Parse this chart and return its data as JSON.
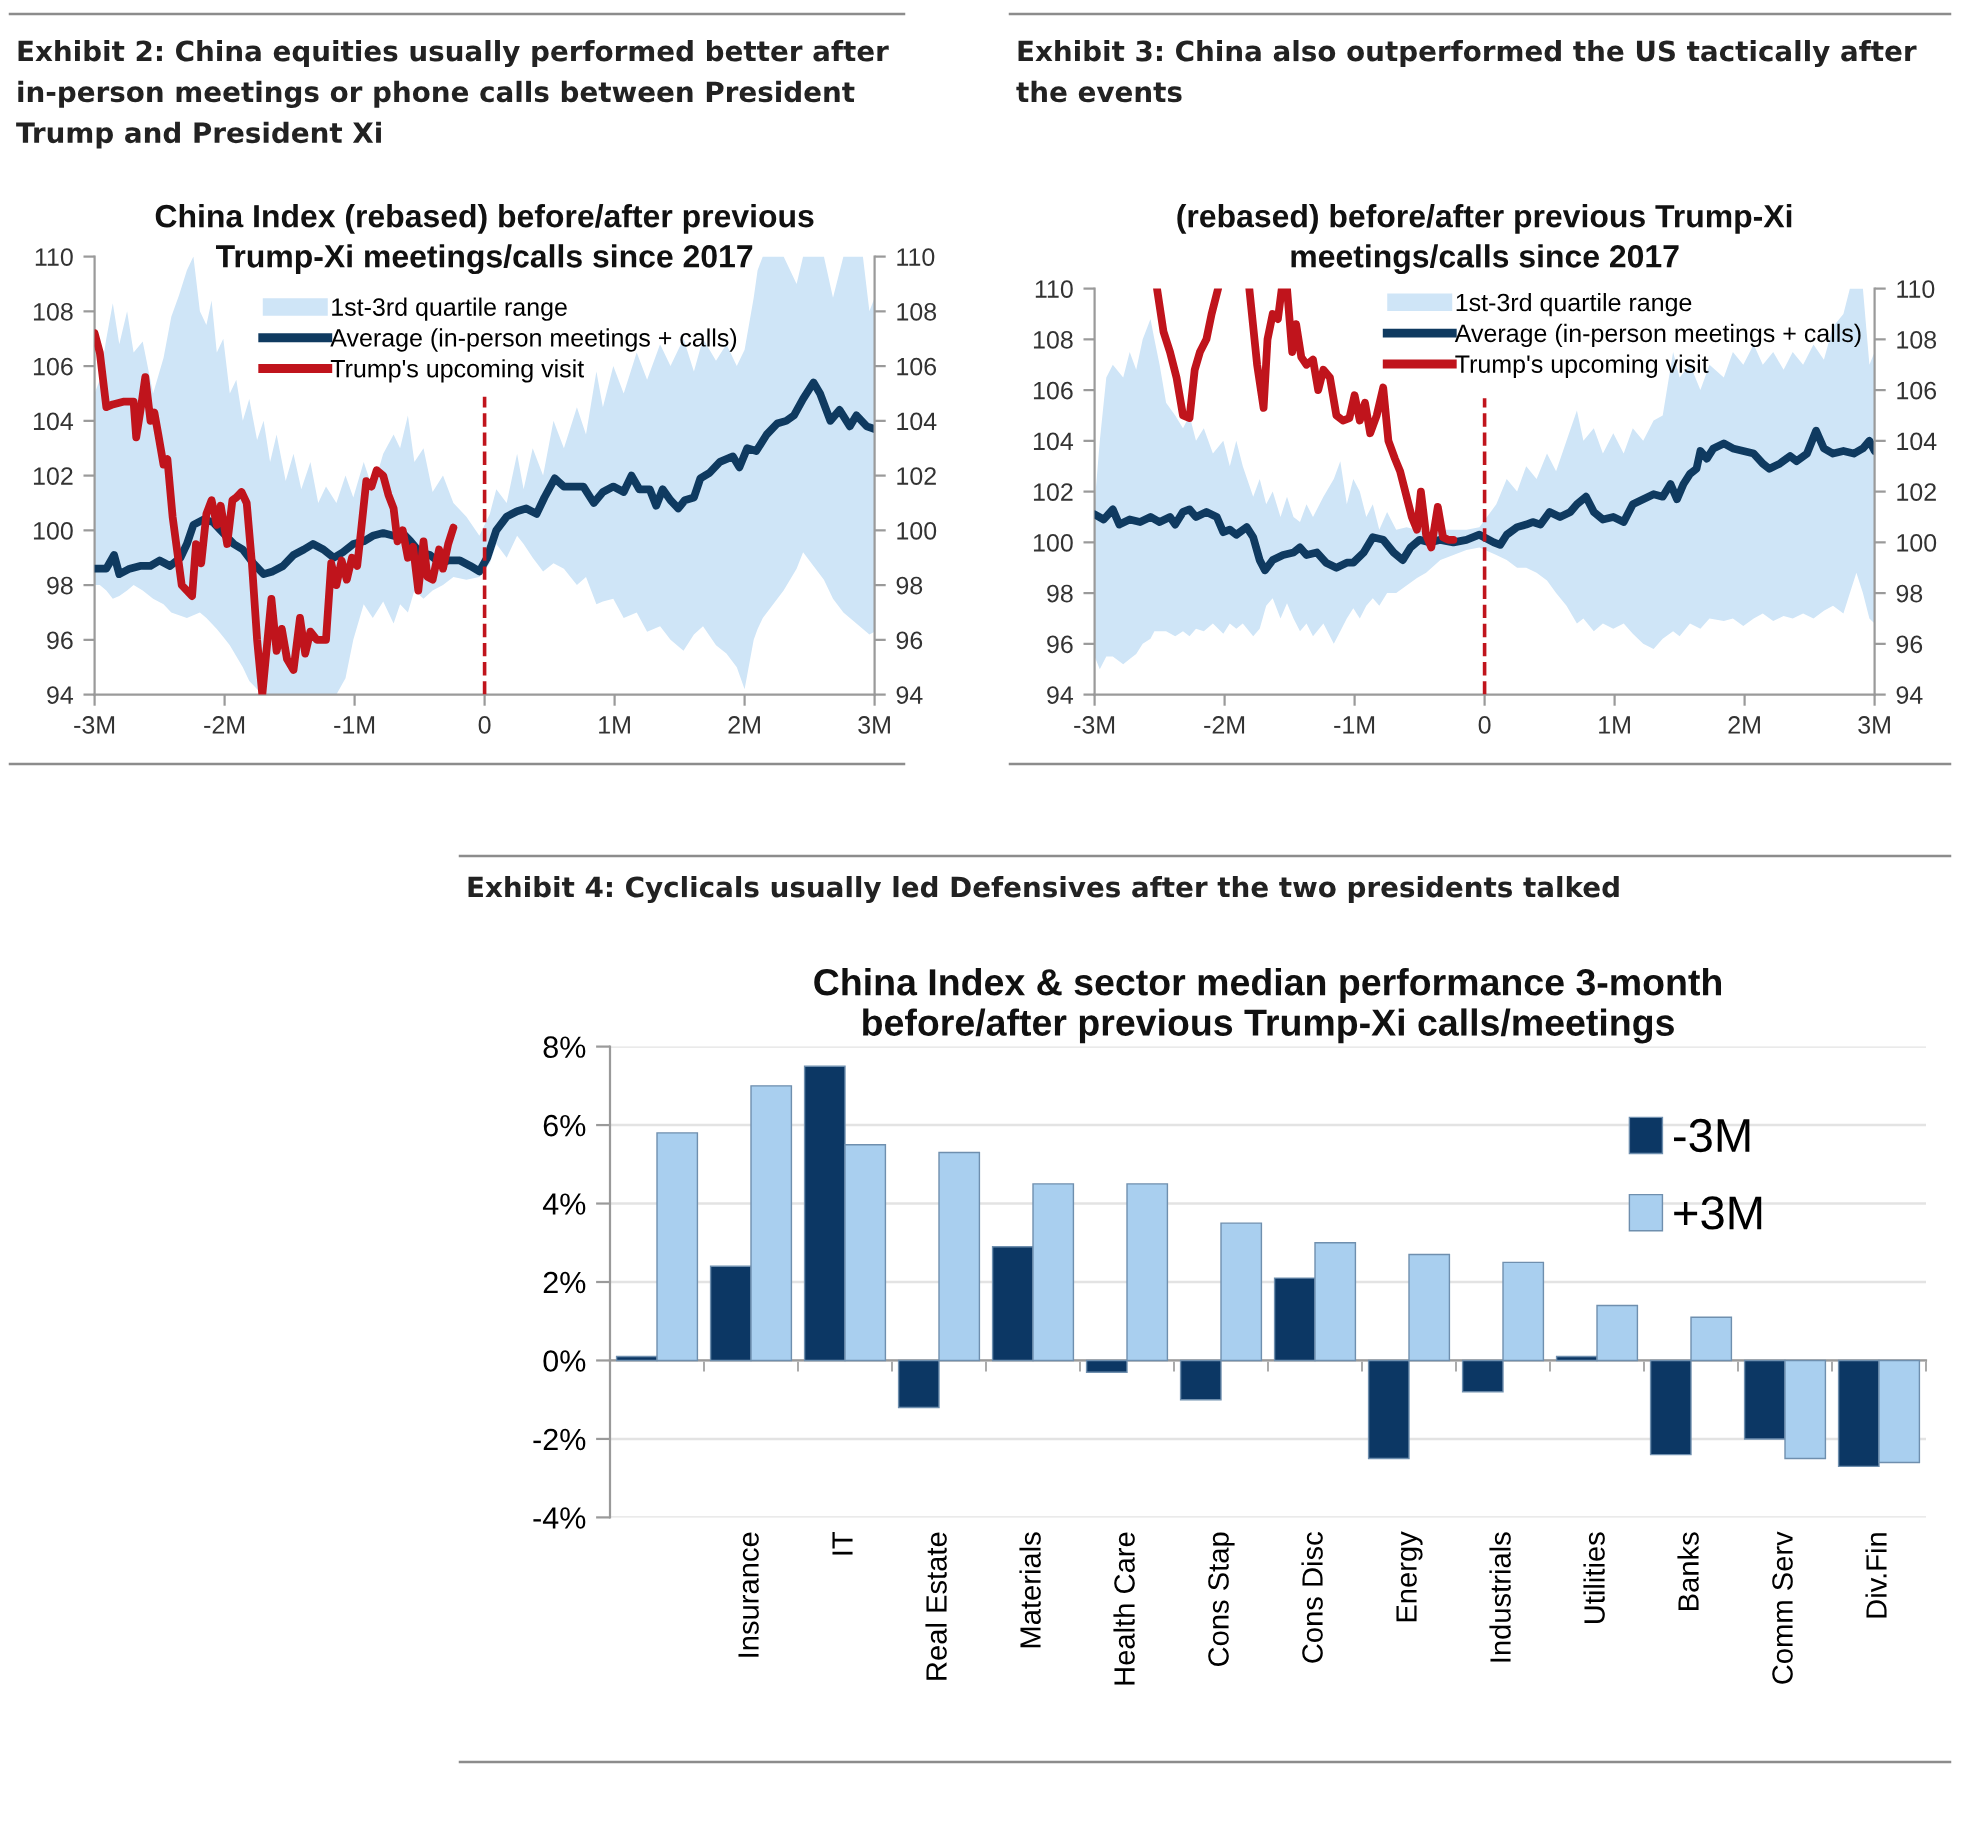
{
  "chart_data": [
    {
      "type": "line",
      "title": "Exhibit 2: China equities usually performed better after in-person meetings or phone calls between President Trump and President Xi",
      "subtitle": "China Index (rebased) before/after previous Trump-Xi meetings/calls since 2017",
      "xlim": [
        -3,
        3
      ],
      "xticks": [
        {
          "value": -3,
          "label": "-3M"
        },
        {
          "value": -2,
          "label": "-2M"
        },
        {
          "value": -1,
          "label": "-1M"
        },
        0,
        {
          "value": 1,
          "label": "1M"
        },
        {
          "value": 2,
          "label": "2M"
        },
        {
          "value": 3,
          "label": "3M"
        }
      ],
      "ylim": [
        94,
        110
      ],
      "yticks": [
        94,
        96,
        98,
        100,
        102,
        104,
        106,
        108,
        110
      ],
      "y2lim": [
        94,
        110
      ],
      "y2ticks": [
        94,
        96,
        98,
        100,
        102,
        104,
        106,
        108,
        110
      ],
      "legend": "top",
      "ref_lines": [
        {
          "axis": "x",
          "value": 0,
          "color": "#c0141c",
          "line_style": "dashed"
        }
      ],
      "series": [
        {
          "name": "1st-3rd quartile range",
          "type": "area",
          "color": "#cfe5f7",
          "x": [
            -3.0,
            -2.96,
            -2.91,
            -2.86,
            -2.81,
            -2.75,
            -2.7,
            -2.63,
            -2.55,
            -2.47,
            -2.41,
            -2.35,
            -2.29,
            -2.24,
            -2.19,
            -2.14,
            -2.1,
            -2.06,
            -2.01,
            -1.96,
            -1.91,
            -1.86,
            -1.81,
            -1.75,
            -1.7,
            -1.65,
            -1.6,
            -1.53,
            -1.47,
            -1.41,
            -1.34,
            -1.28,
            -1.22,
            -1.14,
            -1.07,
            -1.01,
            -0.93,
            -0.86,
            -0.78,
            -0.7,
            -0.65,
            -0.59,
            -0.54,
            -0.47,
            -0.4,
            -0.32,
            -0.24,
            -0.14,
            -0.04,
            0.04,
            0.09,
            0.17,
            0.25,
            0.3,
            0.37,
            0.45,
            0.53,
            0.61,
            0.71,
            0.78,
            0.86,
            0.91,
            0.99,
            1.07,
            1.17,
            1.25,
            1.35,
            1.43,
            1.53,
            1.61,
            1.68,
            1.78,
            1.86,
            1.94,
            2.0,
            2.07,
            2.1,
            2.14,
            2.3,
            2.4,
            2.45,
            2.61,
            2.68,
            2.76,
            2.91,
            2.96,
            3.0
          ],
          "values": [
            null,
            null,
            null,
            null,
            null,
            null,
            null,
            null,
            null,
            null,
            null,
            null,
            null,
            null,
            null,
            null,
            null,
            null,
            null,
            null,
            null,
            null,
            null,
            null,
            null,
            null,
            null,
            null,
            null,
            null,
            null,
            null,
            null,
            null,
            null,
            null,
            null,
            null,
            null,
            null,
            null,
            null,
            null,
            null,
            null,
            null,
            null,
            null,
            null,
            null,
            null,
            null,
            null,
            null,
            null,
            null,
            null,
            null,
            null,
            null,
            null,
            null,
            null,
            null,
            null,
            null,
            null,
            null,
            null,
            null,
            null,
            null,
            null,
            null,
            null,
            null,
            null,
            null,
            null,
            null,
            null,
            null,
            null,
            null,
            null,
            null,
            null
          ],
          "upper": [
            105.0,
            105.5,
            107.0,
            108.3,
            106.8,
            108.0,
            106.5,
            106.9,
            105.0,
            106.3,
            107.8,
            108.6,
            109.5,
            110.0,
            108.0,
            107.5,
            108.4,
            106.5,
            107.0,
            105.0,
            105.5,
            104.0,
            104.8,
            103.3,
            104.0,
            102.5,
            103.5,
            101.8,
            102.8,
            101.5,
            102.5,
            101.0,
            101.6,
            101.0,
            102.0,
            101.2,
            102.5,
            101.5,
            102.8,
            103.5,
            103.0,
            104.2,
            102.5,
            103.0,
            101.4,
            102.0,
            101.0,
            100.5,
            99.8,
            100.6,
            101.5,
            101.0,
            102.8,
            101.5,
            103.0,
            102.0,
            104.0,
            103.0,
            104.5,
            103.5,
            105.8,
            104.5,
            106.0,
            105.0,
            106.5,
            105.5,
            106.8,
            106.0,
            107.0,
            105.8,
            107.0,
            106.2,
            106.8,
            106.0,
            106.6,
            108.5,
            109.5,
            110.0,
            110.0,
            109.0,
            110.0,
            110.0,
            108.5,
            110.0,
            110.0,
            108.0,
            108.5
          ],
          "lower": [
            98.0,
            98.0,
            97.8,
            97.5,
            97.6,
            97.8,
            98.0,
            97.8,
            97.5,
            97.3,
            97.0,
            96.9,
            96.8,
            96.9,
            97.0,
            96.8,
            96.6,
            96.4,
            96.1,
            95.8,
            95.4,
            95.0,
            94.5,
            94.2,
            94.0,
            94.0,
            94.0,
            94.0,
            94.0,
            94.0,
            94.0,
            94.0,
            94.0,
            94.0,
            94.6,
            96.0,
            97.3,
            96.8,
            97.4,
            96.6,
            97.3,
            97.0,
            97.8,
            97.5,
            97.8,
            98.0,
            98.3,
            98.2,
            98.3,
            98.8,
            99.5,
            99.0,
            99.8,
            99.5,
            99.0,
            98.5,
            98.8,
            98.6,
            98.0,
            98.3,
            97.3,
            97.4,
            97.5,
            96.8,
            97.0,
            96.3,
            96.5,
            96.0,
            95.6,
            96.2,
            96.5,
            95.8,
            95.5,
            95.0,
            94.2,
            96.0,
            96.4,
            96.8,
            97.8,
            98.6,
            99.2,
            98.2,
            97.5,
            97.0,
            96.4,
            96.2,
            96.3
          ]
        },
        {
          "name": "Average (in-person meetings + calls)",
          "type": "line",
          "color": "#0f3a60",
          "x": [
            -3.0,
            -2.91,
            -2.85,
            -2.81,
            -2.73,
            -2.65,
            -2.57,
            -2.5,
            -2.42,
            -2.34,
            -2.29,
            -2.24,
            -2.16,
            -2.09,
            -2.01,
            -1.93,
            -1.86,
            -1.78,
            -1.7,
            -1.63,
            -1.55,
            -1.47,
            -1.39,
            -1.32,
            -1.24,
            -1.16,
            -1.09,
            -1.01,
            -0.93,
            -0.86,
            -0.78,
            -0.7,
            -0.63,
            -0.57,
            -0.5,
            -0.42,
            -0.34,
            -0.28,
            -0.19,
            -0.11,
            -0.04,
            0.02,
            0.09,
            0.17,
            0.25,
            0.32,
            0.4,
            0.46,
            0.54,
            0.61,
            0.68,
            0.76,
            0.84,
            0.91,
            0.99,
            1.07,
            1.13,
            1.19,
            1.27,
            1.32,
            1.37,
            1.43,
            1.49,
            1.54,
            1.61,
            1.66,
            1.73,
            1.81,
            1.91,
            1.96,
            2.02,
            2.09,
            2.17,
            2.25,
            2.32,
            2.38,
            2.45,
            2.53,
            2.58,
            2.66,
            2.73,
            2.81,
            2.86,
            2.94,
            3.0
          ],
          "values": [
            98.6,
            98.6,
            99.1,
            98.4,
            98.6,
            98.7,
            98.7,
            98.9,
            98.7,
            99.0,
            99.5,
            100.2,
            100.4,
            100.3,
            99.9,
            99.5,
            99.3,
            98.8,
            98.4,
            98.5,
            98.7,
            99.1,
            99.3,
            99.5,
            99.3,
            99.0,
            99.2,
            99.5,
            99.6,
            99.8,
            99.9,
            99.8,
            99.9,
            99.6,
            99.2,
            99.1,
            98.8,
            98.9,
            98.9,
            98.7,
            98.5,
            99.0,
            100.0,
            100.5,
            100.7,
            100.8,
            100.6,
            101.2,
            101.9,
            101.6,
            101.6,
            101.6,
            101.0,
            101.4,
            101.6,
            101.4,
            102.0,
            101.5,
            101.5,
            100.9,
            101.5,
            101.1,
            100.8,
            101.1,
            101.2,
            101.9,
            102.1,
            102.5,
            102.7,
            102.3,
            103.0,
            102.9,
            103.5,
            103.9,
            104.0,
            104.2,
            104.8,
            105.4,
            105.0,
            104.0,
            104.4,
            103.8,
            104.2,
            103.8,
            103.7
          ]
        },
        {
          "name": "Trump's upcoming visit",
          "type": "line",
          "color": "#c0141c",
          "x": [
            -3.0,
            -2.96,
            -2.91,
            -2.86,
            -2.78,
            -2.7,
            -2.68,
            -2.64,
            -2.61,
            -2.57,
            -2.54,
            -2.51,
            -2.47,
            -2.44,
            -2.4,
            -2.33,
            -2.29,
            -2.25,
            -2.22,
            -2.18,
            -2.14,
            -2.1,
            -2.06,
            -2.03,
            -1.98,
            -1.94,
            -1.91,
            -1.87,
            -1.83,
            -1.79,
            -1.75,
            -1.71,
            -1.68,
            -1.64,
            -1.6,
            -1.56,
            -1.52,
            -1.47,
            -1.42,
            -1.38,
            -1.34,
            -1.29,
            -1.22,
            -1.18,
            -1.14,
            -1.1,
            -1.06,
            -1.02,
            -0.98,
            -0.95,
            -0.91,
            -0.87,
            -0.83,
            -0.78,
            -0.74,
            -0.7,
            -0.67,
            -0.63,
            -0.59,
            -0.55,
            -0.51,
            -0.47,
            -0.44,
            -0.4,
            -0.35,
            -0.32,
            -0.28,
            -0.24
          ],
          "values": [
            107.2,
            106.5,
            104.5,
            104.6,
            104.7,
            104.7,
            103.4,
            104.6,
            105.6,
            104.0,
            104.3,
            103.5,
            102.4,
            102.6,
            100.5,
            98.0,
            97.8,
            97.6,
            99.5,
            98.8,
            100.6,
            101.1,
            100.2,
            100.9,
            99.5,
            101.1,
            101.2,
            101.4,
            101.0,
            98.8,
            96.0,
            94.0,
            95.5,
            97.5,
            95.6,
            96.4,
            95.3,
            94.9,
            96.8,
            95.5,
            96.3,
            96.0,
            96.0,
            98.8,
            98.0,
            98.9,
            98.2,
            99.0,
            98.7,
            100.0,
            101.8,
            101.6,
            102.2,
            102.0,
            101.3,
            100.8,
            99.6,
            100.0,
            99.0,
            99.4,
            97.8,
            99.6,
            98.3,
            98.2,
            99.3,
            98.6,
            99.5,
            100.1
          ]
        }
      ]
    },
    {
      "type": "line",
      "title": "Exhibit 3: China also outperformed the US tactically after the events",
      "subtitle": "(rebased) before/after previous Trump-Xi meetings/calls since 2017",
      "xlim": [
        -3,
        3
      ],
      "xticks": [
        {
          "value": -3,
          "label": "-3M"
        },
        {
          "value": -2,
          "label": "-2M"
        },
        {
          "value": -1,
          "label": "-1M"
        },
        0,
        {
          "value": 1,
          "label": "1M"
        },
        {
          "value": 2,
          "label": "2M"
        },
        {
          "value": 3,
          "label": "3M"
        }
      ],
      "ylim": [
        94,
        110
      ],
      "yticks": [
        94,
        96,
        98,
        100,
        102,
        104,
        106,
        108,
        110
      ],
      "y2lim": [
        94,
        110
      ],
      "y2ticks": [
        94,
        96,
        98,
        100,
        102,
        104,
        106,
        108,
        110
      ],
      "legend": "top right",
      "ref_lines": [
        {
          "axis": "x",
          "value": 0,
          "color": "#c0141c",
          "line_style": "dashed"
        }
      ],
      "series": [
        {
          "name": "1st-3rd quartile range",
          "type": "area",
          "color": "#cfe5f7",
          "x": [
            -3.0,
            -2.96,
            -2.91,
            -2.86,
            -2.78,
            -2.73,
            -2.68,
            -2.63,
            -2.57,
            -2.54,
            -2.5,
            -2.45,
            -2.38,
            -2.32,
            -2.27,
            -2.22,
            -2.16,
            -2.09,
            -2.01,
            -1.96,
            -1.91,
            -1.86,
            -1.78,
            -1.73,
            -1.68,
            -1.63,
            -1.57,
            -1.52,
            -1.47,
            -1.42,
            -1.37,
            -1.32,
            -1.24,
            -1.16,
            -1.11,
            -1.06,
            -1.01,
            -0.96,
            -0.91,
            -0.86,
            -0.81,
            -0.75,
            -0.68,
            -0.6,
            -0.52,
            -0.45,
            -0.34,
            -0.24,
            -0.14,
            -0.04,
            0.09,
            0.17,
            0.25,
            0.32,
            0.4,
            0.48,
            0.55,
            0.63,
            0.71,
            0.76,
            0.84,
            0.91,
            0.99,
            1.07,
            1.14,
            1.22,
            1.3,
            1.37,
            1.45,
            1.5,
            1.58,
            1.66,
            1.73,
            1.84,
            1.91,
            1.99,
            2.07,
            2.14,
            2.22,
            2.3,
            2.37,
            2.45,
            2.53,
            2.61,
            2.68,
            2.76,
            2.81,
            2.86,
            2.91,
            2.96,
            3.0
          ],
          "values": [
            null,
            null,
            null,
            null,
            null,
            null,
            null,
            null,
            null,
            null,
            null,
            null,
            null,
            null,
            null,
            null,
            null,
            null,
            null,
            null,
            null,
            null,
            null,
            null,
            null,
            null,
            null,
            null,
            null,
            null,
            null,
            null,
            null,
            null,
            null,
            null,
            null,
            null,
            null,
            null,
            null,
            null,
            null,
            null,
            null,
            null,
            null,
            null,
            null,
            null,
            null,
            null,
            null,
            null,
            null,
            null,
            null,
            null,
            null,
            null,
            null,
            null,
            null,
            null,
            null,
            null,
            null,
            null,
            null,
            null,
            null,
            null,
            null,
            null,
            null,
            null,
            null,
            null,
            null,
            null,
            null,
            null,
            null,
            null,
            null,
            null,
            null,
            null,
            null,
            null,
            null
          ],
          "upper": [
            101.5,
            104.0,
            106.5,
            107.0,
            106.5,
            107.5,
            106.8,
            108.0,
            108.8,
            108.0,
            107.0,
            105.5,
            105.0,
            104.5,
            105.0,
            104.0,
            104.5,
            103.5,
            104.0,
            103.0,
            104.0,
            103.0,
            101.8,
            102.5,
            101.5,
            102.0,
            101.0,
            101.8,
            101.0,
            100.8,
            101.5,
            101.0,
            101.8,
            102.5,
            103.2,
            101.5,
            102.5,
            102.0,
            101.0,
            101.5,
            100.5,
            101.2,
            100.5,
            100.6,
            100.5,
            100.4,
            100.5,
            100.5,
            100.5,
            100.6,
            101.5,
            102.5,
            102.0,
            103.0,
            102.5,
            103.5,
            102.8,
            104.0,
            105.2,
            104.0,
            104.5,
            103.5,
            104.3,
            103.5,
            104.5,
            104.0,
            104.8,
            105.0,
            107.5,
            106.5,
            107.0,
            106.0,
            107.0,
            106.5,
            107.5,
            107.0,
            107.8,
            107.0,
            107.5,
            106.8,
            107.5,
            107.0,
            107.8,
            107.2,
            108.5,
            109.0,
            110.0,
            110.0,
            110.0,
            107.0,
            107.5
          ],
          "lower": [
            95.5,
            95.0,
            95.5,
            95.5,
            95.2,
            95.4,
            95.6,
            96.0,
            96.2,
            96.5,
            96.5,
            96.5,
            96.3,
            96.5,
            96.3,
            96.6,
            96.5,
            96.8,
            96.4,
            96.8,
            96.6,
            96.8,
            96.3,
            96.6,
            97.5,
            97.8,
            97.0,
            97.6,
            97.0,
            96.5,
            96.8,
            96.3,
            96.8,
            96.0,
            96.5,
            97.0,
            97.4,
            97.0,
            97.5,
            97.8,
            97.5,
            98.0,
            98.0,
            98.3,
            98.6,
            98.8,
            99.3,
            99.5,
            99.7,
            99.8,
            99.5,
            99.3,
            99.0,
            99.0,
            98.8,
            98.5,
            98.0,
            97.5,
            96.8,
            97.0,
            96.5,
            96.8,
            96.6,
            96.8,
            96.4,
            96.0,
            95.8,
            96.2,
            96.5,
            96.3,
            96.8,
            96.6,
            97.0,
            96.9,
            97.0,
            96.7,
            97.0,
            97.2,
            96.9,
            97.1,
            97.0,
            97.2,
            97.0,
            97.3,
            97.5,
            97.2,
            98.0,
            98.8,
            98.0,
            97.0,
            96.8
          ]
        },
        {
          "name": "Average (in-person meetings + calls)",
          "type": "line",
          "color": "#0f3a60",
          "x": [
            -3.0,
            -2.93,
            -2.86,
            -2.81,
            -2.73,
            -2.65,
            -2.57,
            -2.5,
            -2.42,
            -2.38,
            -2.32,
            -2.27,
            -2.22,
            -2.14,
            -2.06,
            -2.01,
            -1.96,
            -1.91,
            -1.83,
            -1.78,
            -1.73,
            -1.69,
            -1.63,
            -1.55,
            -1.47,
            -1.42,
            -1.37,
            -1.29,
            -1.22,
            -1.14,
            -1.06,
            -1.01,
            -0.93,
            -0.86,
            -0.78,
            -0.7,
            -0.63,
            -0.57,
            -0.5,
            -0.42,
            -0.34,
            -0.24,
            -0.14,
            -0.04,
            0.07,
            0.12,
            0.17,
            0.25,
            0.32,
            0.37,
            0.43,
            0.5,
            0.58,
            0.66,
            0.71,
            0.78,
            0.84,
            0.91,
            0.99,
            1.07,
            1.14,
            1.22,
            1.3,
            1.37,
            1.43,
            1.48,
            1.53,
            1.58,
            1.63,
            1.66,
            1.71,
            1.76,
            1.84,
            1.91,
            1.99,
            2.07,
            2.14,
            2.19,
            2.27,
            2.35,
            2.4,
            2.48,
            2.55,
            2.61,
            2.68,
            2.76,
            2.84,
            2.91,
            2.96,
            3.0
          ],
          "values": [
            101.1,
            100.9,
            101.3,
            100.7,
            100.9,
            100.8,
            101.0,
            100.8,
            101.0,
            100.7,
            101.2,
            101.3,
            101.0,
            101.2,
            101.0,
            100.4,
            100.5,
            100.3,
            100.6,
            100.2,
            99.3,
            98.9,
            99.3,
            99.5,
            99.6,
            99.8,
            99.5,
            99.6,
            99.2,
            99.0,
            99.2,
            99.2,
            99.6,
            100.2,
            100.1,
            99.6,
            99.3,
            99.8,
            100.1,
            100.0,
            100.1,
            100.0,
            100.1,
            100.3,
            100.0,
            99.9,
            100.3,
            100.6,
            100.7,
            100.8,
            100.7,
            101.2,
            101.0,
            101.2,
            101.5,
            101.8,
            101.2,
            100.9,
            101.0,
            100.8,
            101.5,
            101.7,
            101.9,
            101.8,
            102.3,
            101.7,
            102.3,
            102.7,
            102.9,
            103.6,
            103.3,
            103.7,
            103.9,
            103.7,
            103.6,
            103.5,
            103.1,
            102.9,
            103.1,
            103.4,
            103.2,
            103.5,
            104.4,
            103.7,
            103.5,
            103.6,
            103.5,
            103.7,
            104.0,
            103.6
          ]
        },
        {
          "name": "Trump's upcoming visit",
          "type": "line",
          "color": "#c0141c",
          "x": [
            -2.52,
            -2.47,
            -2.42,
            -2.37,
            -2.32,
            -2.27,
            -2.23,
            -2.19,
            -2.14,
            -2.1,
            -2.05,
            -1.93,
            -1.81,
            -1.75,
            -1.7,
            -1.67,
            -1.63,
            -1.59,
            -1.56,
            -1.54,
            -1.52,
            -1.48,
            -1.45,
            -1.41,
            -1.37,
            -1.32,
            -1.28,
            -1.24,
            -1.19,
            -1.14,
            -1.09,
            -1.04,
            -1.0,
            -0.96,
            -0.92,
            -0.88,
            -0.83,
            -0.78,
            -0.74,
            -0.69,
            -0.65,
            -0.6,
            -0.56,
            -0.52,
            -0.49,
            -0.45,
            -0.41,
            -0.36,
            -0.32,
            -0.28,
            -0.24
          ],
          "values": [
            110.0,
            108.3,
            107.5,
            106.5,
            105.0,
            104.9,
            106.8,
            107.5,
            108.0,
            109.0,
            110.0,
            null,
            110.0,
            107.0,
            105.3,
            108.0,
            109.0,
            108.8,
            110.0,
            null,
            110.0,
            107.5,
            108.6,
            107.3,
            107.0,
            107.2,
            106.0,
            106.8,
            106.5,
            105.0,
            104.8,
            104.9,
            105.8,
            104.8,
            105.5,
            104.3,
            105.0,
            106.1,
            104.0,
            103.3,
            102.8,
            101.8,
            101.0,
            100.5,
            102.0,
            100.3,
            99.8,
            101.4,
            100.2,
            100.1,
            100.1
          ]
        }
      ]
    },
    {
      "type": "bar",
      "title": "Exhibit 4: Cyclicals usually led Defensives after the two presidents talked",
      "subtitle": "China Index & sector median performance 3-month before/after previous Trump-Xi calls/meetings",
      "categories": [
        null,
        "Insurance",
        "IT",
        "Real Estate",
        "Materials",
        "Health Care",
        "Cons Stap",
        "Cons Disc",
        "Energy",
        "Industrials",
        "Utilities",
        "Banks",
        "Comm Serv",
        "Div.Fin"
      ],
      "series": [
        {
          "name": "-3M",
          "color": "#0c3764",
          "values": [
            0.1,
            2.4,
            7.5,
            -1.2,
            2.9,
            -0.3,
            -1.0,
            2.1,
            -2.5,
            -0.8,
            0.1,
            -2.4,
            -2.0,
            -2.7
          ]
        },
        {
          "name": "+3M",
          "color": "#a9cfef",
          "values": [
            5.8,
            7.0,
            5.5,
            5.3,
            4.5,
            4.5,
            3.5,
            3.0,
            2.7,
            2.5,
            1.4,
            1.1,
            -2.5,
            -2.6
          ]
        }
      ],
      "ylim": [
        -4,
        8
      ],
      "yticks": [
        {
          "value": -4,
          "label": "-4%"
        },
        {
          "value": -2,
          "label": "-2%"
        },
        {
          "value": 0,
          "label": "0%"
        },
        {
          "value": 2,
          "label": "2%"
        },
        {
          "value": 4,
          "label": "4%"
        },
        {
          "value": 6,
          "label": "6%"
        },
        {
          "value": 8,
          "label": "8%"
        }
      ],
      "grid": "y",
      "legend": "top right"
    }
  ]
}
